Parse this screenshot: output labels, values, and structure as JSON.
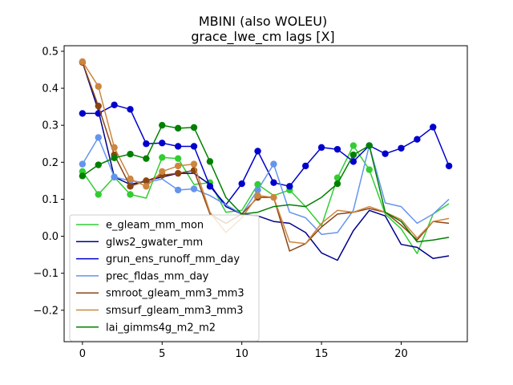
{
  "chart_data": {
    "type": "line",
    "title": "MBINI (also WOLEU)",
    "subtitle": "grace_lwe_cm lags [X]",
    "xlim": [
      -1.15,
      24.15
    ],
    "ylim": [
      -0.285,
      0.515
    ],
    "xticks": [
      0,
      5,
      10,
      15,
      20
    ],
    "yticks": [
      -0.2,
      -0.1,
      0.0,
      0.1,
      0.2,
      0.3,
      0.4,
      0.5
    ],
    "ytick_labels": [
      "−0.2",
      "−0.1",
      "0.0",
      "0.1",
      "0.2",
      "0.3",
      "0.4",
      "0.5"
    ],
    "legend_position": "lower-left",
    "series": [
      {
        "name": "e_gleam_mm_mon",
        "color": "#32cd32",
        "x": [
          0,
          1,
          2,
          3,
          4,
          5,
          6,
          7,
          8,
          9,
          10,
          11,
          12,
          13,
          14,
          15,
          16,
          17,
          18,
          19,
          20,
          21,
          22,
          23
        ],
        "y": [
          0.175,
          0.113,
          0.16,
          0.113,
          0.103,
          0.213,
          0.21,
          0.14,
          0.145,
          0.065,
          0.07,
          0.14,
          0.11,
          0.125,
          0.08,
          0.028,
          0.158,
          0.245,
          0.18,
          0.06,
          0.02,
          -0.047,
          0.06,
          0.088
        ],
        "markers": [
          0,
          1,
          2,
          3,
          5,
          6,
          8,
          11,
          13,
          16,
          17,
          18
        ]
      },
      {
        "name": "glws2_gwater_mm",
        "color": "#00008b",
        "x": [
          0,
          1,
          2,
          3,
          4,
          5,
          6,
          7,
          8,
          9,
          10,
          11,
          12,
          13,
          14,
          15,
          16,
          17,
          18,
          19,
          20,
          21,
          22,
          23
        ],
        "y": [
          0.47,
          0.34,
          0.16,
          0.14,
          0.15,
          0.16,
          0.17,
          0.17,
          0.14,
          0.08,
          0.06,
          0.055,
          0.04,
          0.035,
          0.01,
          -0.045,
          -0.065,
          0.015,
          0.07,
          0.055,
          -0.022,
          -0.03,
          -0.06,
          -0.053
        ],
        "markers": []
      },
      {
        "name": "grun_ens_runoff_mm_day",
        "color": "#0000cd",
        "x": [
          0,
          1,
          2,
          3,
          4,
          5,
          6,
          7,
          8,
          9,
          10,
          11,
          12,
          13,
          14,
          15,
          16,
          17,
          18,
          19,
          20,
          21,
          22,
          23
        ],
        "y": [
          0.332,
          0.332,
          0.355,
          0.343,
          0.25,
          0.252,
          0.243,
          0.243,
          0.135,
          0.085,
          0.142,
          0.23,
          0.145,
          0.135,
          0.19,
          0.24,
          0.235,
          0.202,
          0.245,
          0.223,
          0.238,
          0.262,
          0.295,
          0.19
        ],
        "markers": [
          0,
          1,
          2,
          3,
          4,
          5,
          6,
          7,
          8,
          10,
          11,
          12,
          13,
          14,
          15,
          16,
          17,
          18,
          19,
          20,
          21,
          22,
          23
        ]
      },
      {
        "name": "prec_fldas_mm_day",
        "color": "#6495ed",
        "x": [
          0,
          1,
          2,
          3,
          4,
          5,
          6,
          7,
          8,
          9,
          10,
          11,
          12,
          13,
          14,
          15,
          16,
          17,
          18,
          19,
          20,
          21,
          22,
          23
        ],
        "y": [
          0.195,
          0.267,
          0.16,
          0.15,
          0.145,
          0.155,
          0.125,
          0.128,
          0.11,
          0.085,
          0.06,
          0.125,
          0.195,
          0.065,
          0.05,
          0.005,
          0.01,
          0.07,
          0.245,
          0.09,
          0.08,
          0.035,
          0.06,
          0.1
        ],
        "markers": [
          0,
          1,
          2,
          3,
          6,
          7,
          11,
          12,
          18
        ]
      },
      {
        "name": "smroot_gleam_mm3_mm3",
        "color": "#8b4513",
        "x": [
          0,
          1,
          2,
          3,
          4,
          5,
          6,
          7,
          8,
          9,
          10,
          11,
          12,
          13,
          14,
          15,
          16,
          17,
          18,
          19,
          20,
          21,
          22,
          23
        ],
        "y": [
          0.47,
          0.352,
          0.22,
          0.135,
          0.15,
          0.165,
          0.17,
          0.178,
          0.06,
          0.035,
          0.06,
          0.105,
          0.105,
          -0.04,
          -0.02,
          0.025,
          0.06,
          0.065,
          0.075,
          0.065,
          0.03,
          -0.01,
          0.04,
          0.035
        ],
        "markers": [
          0,
          1,
          2,
          3,
          4,
          5,
          6,
          7,
          11
        ]
      },
      {
        "name": "smsurf_gleam_mm3_mm3",
        "color": "#cd853f",
        "x": [
          0,
          1,
          2,
          3,
          4,
          5,
          6,
          7,
          8,
          9,
          10,
          11,
          12,
          13,
          14,
          15,
          16,
          17,
          18,
          19,
          20,
          21,
          22,
          23
        ],
        "y": [
          0.472,
          0.405,
          0.24,
          0.155,
          0.135,
          0.175,
          0.19,
          0.195,
          0.065,
          0.01,
          0.05,
          0.11,
          0.105,
          -0.015,
          -0.02,
          0.035,
          0.07,
          0.065,
          0.08,
          0.065,
          0.045,
          -0.005,
          0.04,
          0.048
        ],
        "markers": [
          0,
          1,
          2,
          3,
          4,
          5,
          6,
          7,
          11,
          12
        ]
      },
      {
        "name": "lai_gimms4g_m2_m2",
        "color": "#008000",
        "x": [
          0,
          1,
          2,
          3,
          4,
          5,
          6,
          7,
          8,
          9,
          10,
          11,
          12,
          13,
          14,
          15,
          16,
          17,
          18,
          19,
          20,
          21,
          22,
          23
        ],
        "y": [
          0.163,
          0.193,
          0.212,
          0.222,
          0.21,
          0.3,
          0.292,
          0.294,
          0.202,
          0.105,
          0.06,
          0.065,
          0.08,
          0.085,
          0.08,
          0.105,
          0.142,
          0.22,
          0.245,
          0.065,
          0.04,
          -0.015,
          -0.01,
          -0.003
        ],
        "markers": [
          0,
          1,
          2,
          3,
          4,
          5,
          6,
          7,
          8,
          16,
          17,
          18
        ]
      }
    ]
  }
}
